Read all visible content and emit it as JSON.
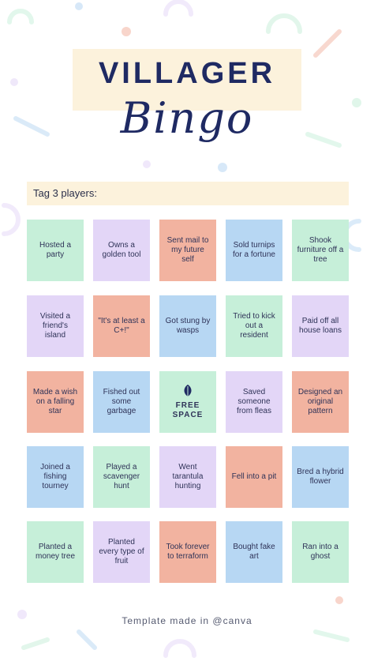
{
  "header": {
    "title": "VILLAGER",
    "subtitle": "Bingo"
  },
  "tag_prompt": "Tag 3 players:",
  "colors": {
    "green": "#c6efd9",
    "purple": "#e3d6f7",
    "salmon": "#f2b3a0",
    "blue": "#b7d7f3",
    "navy": "#1f2a63",
    "cream": "#fcf2dc"
  },
  "board": {
    "rows": [
      [
        {
          "text": "Hosted a party",
          "color": "green"
        },
        {
          "text": "Owns a golden tool",
          "color": "purple"
        },
        {
          "text": "Sent mail to my future self",
          "color": "salmon"
        },
        {
          "text": "Sold turnips for a fortune",
          "color": "blue"
        },
        {
          "text": "Shook furniture off a tree",
          "color": "green"
        }
      ],
      [
        {
          "text": "Visited a friend's island",
          "color": "purple"
        },
        {
          "text": "\"It's at least a C+!\"",
          "color": "salmon"
        },
        {
          "text": "Got stung by wasps",
          "color": "blue"
        },
        {
          "text": "Tried to kick out a resident",
          "color": "green"
        },
        {
          "text": "Paid off all house loans",
          "color": "purple"
        }
      ],
      [
        {
          "text": "Made a wish on a falling star",
          "color": "salmon"
        },
        {
          "text": "Fished out some garbage",
          "color": "blue"
        },
        {
          "text": "FREE SPACE",
          "color": "green",
          "icon": "leaf-icon",
          "free": true
        },
        {
          "text": "Saved someone from fleas",
          "color": "purple"
        },
        {
          "text": "Designed an original pattern",
          "color": "salmon"
        }
      ],
      [
        {
          "text": "Joined a fishing tourney",
          "color": "blue"
        },
        {
          "text": "Played a scavenger hunt",
          "color": "green"
        },
        {
          "text": "Went tarantula hunting",
          "color": "purple"
        },
        {
          "text": "Fell into a pit",
          "color": "salmon"
        },
        {
          "text": "Bred a hybrid flower",
          "color": "blue"
        }
      ],
      [
        {
          "text": "Planted a money tree",
          "color": "green"
        },
        {
          "text": "Planted every type of fruit",
          "color": "purple"
        },
        {
          "text": "Took forever to terraform",
          "color": "salmon"
        },
        {
          "text": "Bought fake art",
          "color": "blue"
        },
        {
          "text": "Ran into a ghost",
          "color": "green"
        }
      ]
    ]
  },
  "footer": "Template made in @canva"
}
